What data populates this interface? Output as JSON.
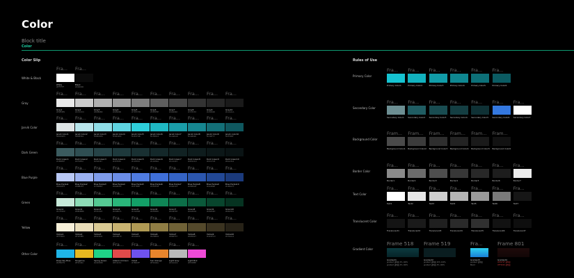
{
  "header": {
    "title": "Color",
    "block_title": "Block title",
    "sub_label": "Color"
  },
  "frame_label": "Fra...",
  "frame_label_long": "Fram...",
  "left": {
    "title": "Color Slip",
    "rows": [
      {
        "label": "White & Black",
        "y": 107,
        "swatches": [
          {
            "name": "White",
            "hex": "#FFFFFF",
            "color": "#ffffff"
          },
          {
            "name": "Black",
            "hex": "#000000",
            "color": "#0b0b0b"
          }
        ]
      },
      {
        "label": "Gray",
        "y": 143,
        "swatches": [
          {
            "name": "Gray1",
            "hex": "#E9E9E9",
            "color": "#e9e9e9"
          },
          {
            "name": "Gray2",
            "hex": "#CCCCCC",
            "color": "#cccccc"
          },
          {
            "name": "Gray3",
            "hex": "#B0B0B0",
            "color": "#b0b0b0"
          },
          {
            "name": "Gray4",
            "hex": "#999999",
            "color": "#999999"
          },
          {
            "name": "Gray5",
            "hex": "#7D7D7D",
            "color": "#7d7d7d"
          },
          {
            "name": "Gray6",
            "hex": "#5E5E5E",
            "color": "#5e5e5e"
          },
          {
            "name": "Gray7",
            "hex": "#464646",
            "color": "#464646"
          },
          {
            "name": "Gray8",
            "hex": "#333333",
            "color": "#333333"
          },
          {
            "name": "Gray9",
            "hex": "#262626",
            "color": "#262626"
          },
          {
            "name": "Gray10",
            "hex": "#1A1A1A",
            "color": "#1a1a1a"
          }
        ]
      },
      {
        "label": "Jarvik Color",
        "y": 178,
        "swatches": [
          {
            "name": "Jarvik Color1",
            "hex": "#DDE4E5",
            "color": "#dde4e5"
          },
          {
            "name": "Jarvik Color2",
            "hex": "#B8E5EA",
            "color": "#b8e5ea"
          },
          {
            "name": "Jarvik Color3",
            "hex": "#8EDDE6",
            "color": "#8edde6"
          },
          {
            "name": "Jarvik Color4",
            "hex": "#5ED4E0",
            "color": "#5ed4e0"
          },
          {
            "name": "Jarvik Color5",
            "hex": "#2ECFDB",
            "color": "#2ecfdb"
          },
          {
            "name": "Jarvik Color6",
            "hex": "#1FB8C3",
            "color": "#1fb8c3"
          },
          {
            "name": "Jarvik Color7",
            "hex": "#1A9DA8",
            "color": "#1a9da8"
          },
          {
            "name": "Jarvik Color8",
            "hex": "#168690",
            "color": "#168690"
          },
          {
            "name": "Jarvik Color9",
            "hex": "#136F77",
            "color": "#136f77"
          },
          {
            "name": "Jarvik color10",
            "hex": "#0F585F",
            "color": "#0f585f"
          }
        ]
      },
      {
        "label": "Dark Green",
        "y": 214,
        "swatches": [
          {
            "name": "Dark Green1",
            "hex": "#3B5B5F",
            "color": "#3b5b5f"
          },
          {
            "name": "Dark Green2",
            "hex": "#2F4E52",
            "color": "#2f4e52"
          },
          {
            "name": "Dark Green3",
            "hex": "#264347",
            "color": "#264347"
          },
          {
            "name": "Dark Green4",
            "hex": "#1E393C",
            "color": "#1e393c"
          },
          {
            "name": "Dark Green5",
            "hex": "#193032",
            "color": "#193032"
          },
          {
            "name": "Dark Green6",
            "hex": "#14282A",
            "color": "#14282a"
          },
          {
            "name": "Dark Green7",
            "hex": "#112223",
            "color": "#112223"
          },
          {
            "name": "Dark Green8",
            "hex": "#0E1C1D",
            "color": "#0e1c1d"
          },
          {
            "name": "Dark Green9",
            "hex": "#0C1718",
            "color": "#0c1718"
          },
          {
            "name": "Dark Green10",
            "hex": "#0A1314",
            "color": "#0a1314"
          }
        ]
      },
      {
        "label": "Blue Purple",
        "y": 250,
        "swatches": [
          {
            "name": "Blue Purple1",
            "hex": "#B9C8F5",
            "color": "#b9c8f5"
          },
          {
            "name": "Blue Purple2",
            "hex": "#9BB1F0",
            "color": "#9bb1f0"
          },
          {
            "name": "Blue Purple3",
            "hex": "#7E9BEA",
            "color": "#7e9bea"
          },
          {
            "name": "Blue Purple4",
            "hex": "#6A8CE6",
            "color": "#6a8ce6"
          },
          {
            "name": "Blue Purple5",
            "hex": "#4F7BE0",
            "color": "#4f7be0"
          },
          {
            "name": "Blue Purple6",
            "hex": "#3F6FD8",
            "color": "#3f6fd8"
          },
          {
            "name": "Blue Purple7",
            "hex": "#3463C5",
            "color": "#3463c5"
          },
          {
            "name": "Blue Purple8",
            "hex": "#2B56AE",
            "color": "#2b56ae"
          },
          {
            "name": "Blue Purple9",
            "hex": "#224896",
            "color": "#224896"
          },
          {
            "name": "Blue Purple10",
            "hex": "#1B3A7C",
            "color": "#1b3a7c"
          }
        ]
      },
      {
        "label": "Green",
        "y": 286,
        "swatches": [
          {
            "name": "Green1",
            "hex": "#C7E9D9",
            "color": "#c7e9d9"
          },
          {
            "name": "Green2",
            "hex": "#8EDBB6",
            "color": "#8edbb6"
          },
          {
            "name": "Green3",
            "hex": "#55C993",
            "color": "#55c993"
          },
          {
            "name": "Green4",
            "hex": "#2AB67A",
            "color": "#2ab67a"
          },
          {
            "name": "Green5",
            "hex": "#13A068",
            "color": "#13a068"
          },
          {
            "name": "Green6",
            "hex": "#0F8656",
            "color": "#0f8656"
          },
          {
            "name": "Green7",
            "hex": "#0C6F48",
            "color": "#0c6f48"
          },
          {
            "name": "Green8",
            "hex": "#0A593A",
            "color": "#0a593a"
          },
          {
            "name": "Green9",
            "hex": "#08452D",
            "color": "#08452d"
          },
          {
            "name": "Green10",
            "hex": "#063321",
            "color": "#063321"
          }
        ]
      },
      {
        "label": "Yellow",
        "y": 322,
        "swatches": [
          {
            "name": "Yellow1",
            "hex": "#FFF6DC",
            "color": "#f6efd8"
          },
          {
            "name": "Yellow2",
            "hex": "#F1E3B5",
            "color": "#e8dcb8"
          },
          {
            "name": "Yellow3",
            "hex": "#E4D091",
            "color": "#d9c993"
          },
          {
            "name": "Yellow4",
            "hex": "#D6BE70",
            "color": "#c9b371"
          },
          {
            "name": "Yellow5",
            "hex": "#C2A653",
            "color": "#b09a54"
          },
          {
            "name": "Yellow6",
            "hex": "#A58B41",
            "color": "#8f7d44"
          },
          {
            "name": "Yellow7",
            "hex": "#866F33",
            "color": "#706237"
          },
          {
            "name": "Yellow8",
            "hex": "#685627",
            "color": "#54492b"
          },
          {
            "name": "Yellow9",
            "hex": "#4D3F1D",
            "color": "#3b3320"
          },
          {
            "name": "Yellow10",
            "hex": "#332A14",
            "color": "#272217"
          }
        ]
      },
      {
        "label": "Other Color",
        "y": 360,
        "swatches": [
          {
            "name": "Deep Sky Blue",
            "hex": "#0FBCF9",
            "color": "#1fb4e6"
          },
          {
            "name": "Tangerine",
            "hex": "#F2C94C",
            "color": "#e6b820"
          },
          {
            "name": "Spring Green",
            "hex": "#22DD88",
            "color": "#1fd386"
          },
          {
            "name": "Alizarin Crimson",
            "hex": "#E74C3C",
            "color": "#e04a4a"
          },
          {
            "name": "Violet",
            "hex": "#7B5CFF",
            "color": "#6e52ee"
          },
          {
            "name": "Sun Orange",
            "hex": "#F2994A",
            "color": "#e9852c"
          },
          {
            "name": "Light Gray",
            "hex": "#C4C4C4",
            "color": "#b9b9b9"
          },
          {
            "name": "Light Pink",
            "hex": "#F25EEE",
            "color": "#ee4ad6"
          }
        ]
      }
    ]
  },
  "right": {
    "title": "Rules of Use",
    "rows": [
      {
        "label": "Primary Color",
        "y": 100,
        "frame": "short",
        "swatches": [
          {
            "name": "Primary Color1",
            "color": "#15c3d1"
          },
          {
            "name": "Primary Color2",
            "color": "#12b2bf"
          },
          {
            "name": "Primary Color3",
            "color": "#119ca8"
          },
          {
            "name": "Primary Color4",
            "color": "#0f8790"
          },
          {
            "name": "Primary Color5",
            "color": "#0d7078"
          },
          {
            "name": "Primary Color6",
            "color": "#0b5b62"
          }
        ]
      },
      {
        "label": "Secondary Color",
        "y": 146,
        "frame": "short",
        "swatches": [
          {
            "name": "Secondary Color1",
            "color": "#6d8f93"
          },
          {
            "name": "Secondary Color2",
            "color": "#205d63"
          },
          {
            "name": "Secondary Color3",
            "color": "#194c51"
          },
          {
            "name": "Secondary Color4",
            "color": "#143e42"
          },
          {
            "name": "Secondary Color5",
            "color": "#0f3135"
          },
          {
            "name": "Secondary Color6",
            "color": "#3478e0"
          },
          {
            "name": "Secondary Color7",
            "color": "#ffffff"
          }
        ]
      },
      {
        "label": "Background Color",
        "y": 191,
        "frame": "long",
        "swatches": [
          {
            "name": "Background Color1",
            "color": "#4a4a4a"
          },
          {
            "name": "Background Color2",
            "color": "#3b3b3b"
          },
          {
            "name": "Background Color3",
            "color": "#2e2e2e"
          },
          {
            "name": "Background Color4",
            "color": "#232323"
          },
          {
            "name": "Background Color5",
            "color": "#1a1a1a"
          },
          {
            "name": "Background Color6",
            "color": "#121212"
          }
        ]
      },
      {
        "label": "Border Color",
        "y": 237,
        "frame": "short",
        "swatches": [
          {
            "name": "Border1",
            "color": "#8a8a8a"
          },
          {
            "name": "Border2",
            "color": "#6c6c6c"
          },
          {
            "name": "Border3",
            "color": "#4e4e4e"
          },
          {
            "name": "Border4",
            "color": "#373737"
          },
          {
            "name": "Border5",
            "color": "#282828"
          },
          {
            "name": "Border6",
            "color": "#1d1d1d"
          },
          {
            "name": "Border7",
            "color": "#ececec"
          }
        ]
      },
      {
        "label": "Text Color",
        "y": 270,
        "frame": "short",
        "swatches": [
          {
            "name": "Text1",
            "color": "#ffffff"
          },
          {
            "name": "Text2",
            "color": "#e6e6e6"
          },
          {
            "name": "Text3",
            "color": "#cfcfcf"
          },
          {
            "name": "Text4",
            "color": "#b5b5b5"
          },
          {
            "name": "Text5",
            "color": "#9a9a9a"
          },
          {
            "name": "Text6",
            "color": "#7a7a7a"
          },
          {
            "name": "Text7",
            "color": "#161616"
          }
        ]
      },
      {
        "label": "Translucent Color",
        "y": 309,
        "frame": "short",
        "swatches": [
          {
            "name": "Translucent1",
            "color": "#141414"
          },
          {
            "name": "Translucent2",
            "color": "#1a1a1a"
          },
          {
            "name": "Translucent3",
            "color": "#202020"
          },
          {
            "name": "Translucent4",
            "color": "#2a2a2a"
          },
          {
            "name": "Translucent5",
            "color": "#303030"
          },
          {
            "name": "Translucent6",
            "color": "#121212"
          },
          {
            "name": "Translucent7",
            "color": "#0e0e0e"
          }
        ]
      }
    ],
    "gradient": {
      "label": "Gradient Color",
      "items": [
        {
          "frame": "Frame 518",
          "name": "Gradient1",
          "from": "#0c3b40",
          "to": "#062327",
          "notes": [
            "gradient  透明度 0% 100%",
            "gradient  透明度 0% 100%"
          ]
        },
        {
          "frame": "Frame 519",
          "name": "Gradient2",
          "from": "#0a1d20",
          "to": "#0a1d20",
          "notes": [
            "gradient  透明度 20% 100%",
            "gradient  透明度 0% 100%"
          ]
        },
        {
          "frame": "Fra...",
          "name": "Gradient3",
          "from": "#2ed1f0",
          "to": "#1a7fd6",
          "notes": [
            "gradient  透明度",
            "Blend"
          ]
        },
        {
          "frame": "Frame 801",
          "name": "Gradient4",
          "from": "#1e0a0a",
          "to": "#120606",
          "notes": [
            "#E31F2F  透明度",
            "#FF0000  透明度"
          ]
        }
      ]
    }
  }
}
